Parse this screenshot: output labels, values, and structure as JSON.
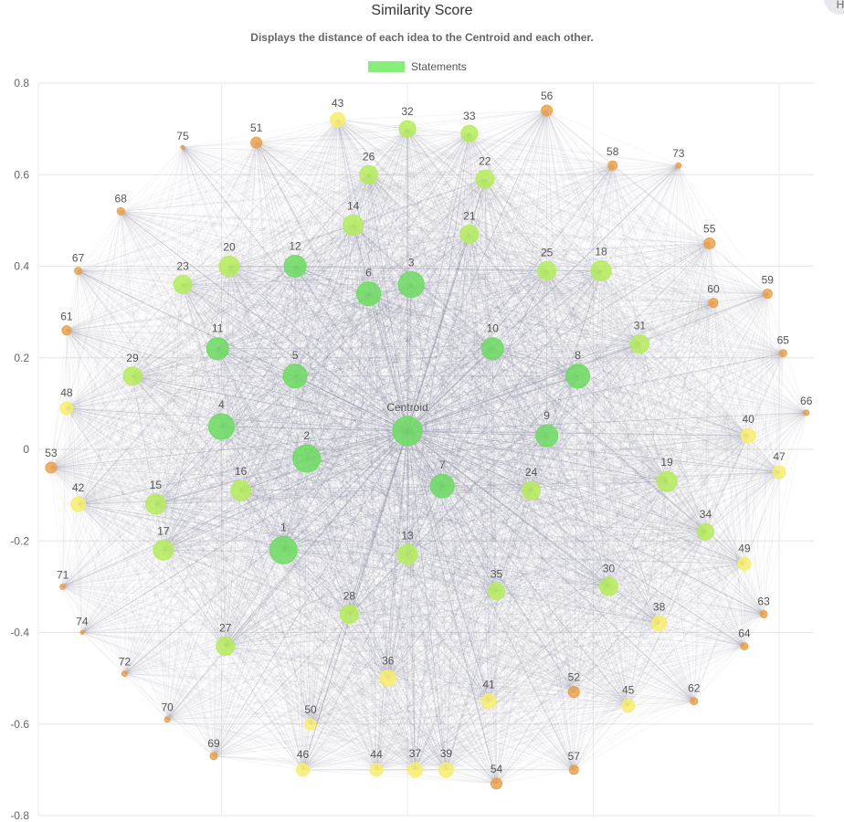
{
  "corner_button": {
    "label": "H"
  },
  "chart_data": {
    "type": "scatter",
    "title": "Similarity Score",
    "subtitle": "Displays the distance of each idea to the Centroid and each other.",
    "legend": {
      "label": "Statements",
      "color": "#86ef7a",
      "position": "top-center"
    },
    "xlim": [
      -1.0,
      1.0
    ],
    "ylim": [
      -0.8,
      0.8
    ],
    "yticks": [
      "0.8",
      "0.6",
      "0.4",
      "0.2",
      "0",
      "-0.2",
      "-0.4",
      "-0.6",
      "-0.8"
    ],
    "grid": true,
    "colors": {
      "green": "#6cdc60",
      "lime": "#b5ec5c",
      "yellow": "#f7ee6c",
      "orange": "#eba24c"
    },
    "edges": "all-to-all",
    "points": [
      {
        "label": "Centroid",
        "x": 0.0,
        "y": 0.04,
        "r": 16,
        "color": "green"
      },
      {
        "label": "1",
        "x": -0.32,
        "y": -0.22,
        "r": 15,
        "color": "green"
      },
      {
        "label": "2",
        "x": -0.26,
        "y": -0.02,
        "r": 15,
        "color": "green"
      },
      {
        "label": "3",
        "x": 0.01,
        "y": 0.36,
        "r": 14,
        "color": "green"
      },
      {
        "label": "4",
        "x": -0.48,
        "y": 0.05,
        "r": 14,
        "color": "green"
      },
      {
        "label": "5",
        "x": -0.29,
        "y": 0.16,
        "r": 13,
        "color": "green"
      },
      {
        "label": "6",
        "x": -0.1,
        "y": 0.34,
        "r": 13,
        "color": "green"
      },
      {
        "label": "7",
        "x": 0.09,
        "y": -0.08,
        "r": 13,
        "color": "green"
      },
      {
        "label": "8",
        "x": 0.44,
        "y": 0.16,
        "r": 13,
        "color": "green"
      },
      {
        "label": "9",
        "x": 0.36,
        "y": 0.03,
        "r": 12,
        "color": "green"
      },
      {
        "label": "10",
        "x": 0.22,
        "y": 0.22,
        "r": 12,
        "color": "green"
      },
      {
        "label": "11",
        "x": -0.49,
        "y": 0.22,
        "r": 12,
        "color": "green"
      },
      {
        "label": "12",
        "x": -0.29,
        "y": 0.4,
        "r": 12,
        "color": "green"
      },
      {
        "label": "13",
        "x": 0.0,
        "y": -0.23,
        "r": 11,
        "color": "lime"
      },
      {
        "label": "14",
        "x": -0.14,
        "y": 0.49,
        "r": 11,
        "color": "lime"
      },
      {
        "label": "15",
        "x": -0.65,
        "y": -0.12,
        "r": 11,
        "color": "lime"
      },
      {
        "label": "16",
        "x": -0.43,
        "y": -0.09,
        "r": 11,
        "color": "lime"
      },
      {
        "label": "17",
        "x": -0.63,
        "y": -0.22,
        "r": 11,
        "color": "lime"
      },
      {
        "label": "18",
        "x": 0.5,
        "y": 0.39,
        "r": 11,
        "color": "lime"
      },
      {
        "label": "19",
        "x": 0.67,
        "y": -0.07,
        "r": 11,
        "color": "lime"
      },
      {
        "label": "20",
        "x": -0.46,
        "y": 0.4,
        "r": 11,
        "color": "lime"
      },
      {
        "label": "21",
        "x": 0.16,
        "y": 0.47,
        "r": 10,
        "color": "lime"
      },
      {
        "label": "22",
        "x": 0.2,
        "y": 0.59,
        "r": 10,
        "color": "lime"
      },
      {
        "label": "23",
        "x": -0.58,
        "y": 0.36,
        "r": 10,
        "color": "lime"
      },
      {
        "label": "24",
        "x": 0.32,
        "y": -0.09,
        "r": 10,
        "color": "lime"
      },
      {
        "label": "25",
        "x": 0.36,
        "y": 0.39,
        "r": 10,
        "color": "lime"
      },
      {
        "label": "26",
        "x": -0.1,
        "y": 0.6,
        "r": 10,
        "color": "lime"
      },
      {
        "label": "27",
        "x": -0.47,
        "y": -0.43,
        "r": 10,
        "color": "lime"
      },
      {
        "label": "28",
        "x": -0.15,
        "y": -0.36,
        "r": 10,
        "color": "lime"
      },
      {
        "label": "29",
        "x": -0.71,
        "y": 0.16,
        "r": 10,
        "color": "lime"
      },
      {
        "label": "30",
        "x": 0.52,
        "y": -0.3,
        "r": 10,
        "color": "lime"
      },
      {
        "label": "31",
        "x": 0.6,
        "y": 0.23,
        "r": 10,
        "color": "lime"
      },
      {
        "label": "32",
        "x": 0.0,
        "y": 0.7,
        "r": 9,
        "color": "lime"
      },
      {
        "label": "33",
        "x": 0.16,
        "y": 0.69,
        "r": 9,
        "color": "lime"
      },
      {
        "label": "34",
        "x": 0.77,
        "y": -0.18,
        "r": 9,
        "color": "lime"
      },
      {
        "label": "35",
        "x": 0.23,
        "y": -0.31,
        "r": 9,
        "color": "lime"
      },
      {
        "label": "36",
        "x": -0.05,
        "y": -0.5,
        "r": 9,
        "color": "yellow"
      },
      {
        "label": "37",
        "x": 0.02,
        "y": -0.7,
        "r": 8,
        "color": "yellow"
      },
      {
        "label": "38",
        "x": 0.65,
        "y": -0.38,
        "r": 8,
        "color": "yellow"
      },
      {
        "label": "39",
        "x": 0.1,
        "y": -0.7,
        "r": 8,
        "color": "yellow"
      },
      {
        "label": "40",
        "x": 0.88,
        "y": 0.03,
        "r": 8,
        "color": "yellow"
      },
      {
        "label": "41",
        "x": 0.21,
        "y": -0.55,
        "r": 8,
        "color": "yellow"
      },
      {
        "label": "42",
        "x": -0.85,
        "y": -0.12,
        "r": 8,
        "color": "yellow"
      },
      {
        "label": "43",
        "x": -0.18,
        "y": 0.72,
        "r": 8,
        "color": "yellow"
      },
      {
        "label": "44",
        "x": -0.08,
        "y": -0.7,
        "r": 7,
        "color": "yellow"
      },
      {
        "label": "45",
        "x": 0.57,
        "y": -0.56,
        "r": 7,
        "color": "yellow"
      },
      {
        "label": "46",
        "x": -0.27,
        "y": -0.7,
        "r": 7,
        "color": "yellow"
      },
      {
        "label": "47",
        "x": 0.96,
        "y": -0.05,
        "r": 7,
        "color": "yellow"
      },
      {
        "label": "48",
        "x": -0.88,
        "y": 0.09,
        "r": 7,
        "color": "yellow"
      },
      {
        "label": "49",
        "x": 0.87,
        "y": -0.25,
        "r": 7,
        "color": "yellow"
      },
      {
        "label": "50",
        "x": -0.25,
        "y": -0.6,
        "r": 6,
        "color": "yellow"
      },
      {
        "label": "51",
        "x": -0.39,
        "y": 0.67,
        "r": 6,
        "color": "orange"
      },
      {
        "label": "52",
        "x": 0.43,
        "y": -0.53,
        "r": 6,
        "color": "orange"
      },
      {
        "label": "53",
        "x": -0.92,
        "y": -0.04,
        "r": 6,
        "color": "orange"
      },
      {
        "label": "54",
        "x": 0.23,
        "y": -0.73,
        "r": 6,
        "color": "orange"
      },
      {
        "label": "55",
        "x": 0.78,
        "y": 0.45,
        "r": 6,
        "color": "orange"
      },
      {
        "label": "56",
        "x": 0.36,
        "y": 0.74,
        "r": 6,
        "color": "orange"
      },
      {
        "label": "57",
        "x": 0.43,
        "y": -0.7,
        "r": 5,
        "color": "orange"
      },
      {
        "label": "58",
        "x": 0.53,
        "y": 0.62,
        "r": 5,
        "color": "orange"
      },
      {
        "label": "59",
        "x": 0.93,
        "y": 0.34,
        "r": 5,
        "color": "orange"
      },
      {
        "label": "60",
        "x": 0.79,
        "y": 0.32,
        "r": 5,
        "color": "orange"
      },
      {
        "label": "61",
        "x": -0.88,
        "y": 0.26,
        "r": 5,
        "color": "orange"
      },
      {
        "label": "62",
        "x": 0.74,
        "y": -0.55,
        "r": 4,
        "color": "orange"
      },
      {
        "label": "63",
        "x": 0.92,
        "y": -0.36,
        "r": 4,
        "color": "orange"
      },
      {
        "label": "64",
        "x": 0.87,
        "y": -0.43,
        "r": 4,
        "color": "orange"
      },
      {
        "label": "65",
        "x": 0.97,
        "y": 0.21,
        "r": 4,
        "color": "orange"
      },
      {
        "label": "66",
        "x": 1.03,
        "y": 0.08,
        "r": 3,
        "color": "orange"
      },
      {
        "label": "67",
        "x": -0.85,
        "y": 0.39,
        "r": 4,
        "color": "orange"
      },
      {
        "label": "68",
        "x": -0.74,
        "y": 0.52,
        "r": 4,
        "color": "orange"
      },
      {
        "label": "69",
        "x": -0.5,
        "y": -0.67,
        "r": 4,
        "color": "orange"
      },
      {
        "label": "70",
        "x": -0.62,
        "y": -0.59,
        "r": 3,
        "color": "orange"
      },
      {
        "label": "71",
        "x": -0.89,
        "y": -0.3,
        "r": 3,
        "color": "orange"
      },
      {
        "label": "72",
        "x": -0.73,
        "y": -0.49,
        "r": 3,
        "color": "orange"
      },
      {
        "label": "73",
        "x": 0.7,
        "y": 0.62,
        "r": 3,
        "color": "orange"
      },
      {
        "label": "74",
        "x": -0.84,
        "y": -0.4,
        "r": 2,
        "color": "orange"
      },
      {
        "label": "75",
        "x": -0.58,
        "y": 0.66,
        "r": 2,
        "color": "orange"
      }
    ]
  }
}
